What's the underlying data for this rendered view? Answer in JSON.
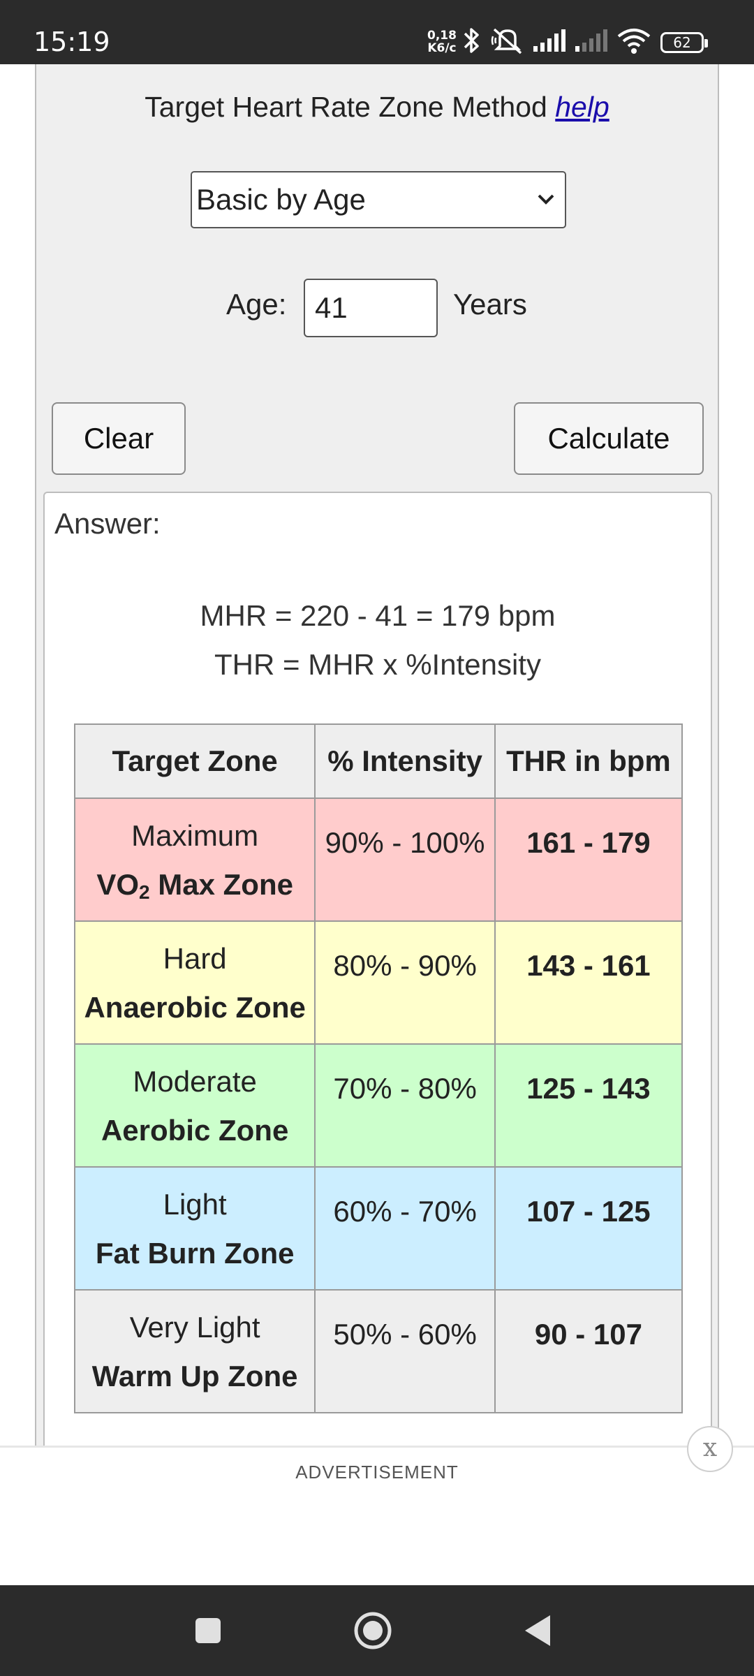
{
  "status_bar": {
    "time": "15:19",
    "net_speed_value": "0,18",
    "net_speed_unit": "K6/c",
    "battery": "62",
    "icons": [
      "bluetooth-icon",
      "mute-icon",
      "signal-icon",
      "signal-weak-icon",
      "wifi-icon",
      "battery-icon"
    ]
  },
  "calculator": {
    "method_label": "Target Heart Rate Zone Method",
    "help_link": "help",
    "method_selected": "Basic by Age",
    "age_label": "Age:",
    "age_value": "41",
    "age_unit": "Years",
    "clear_label": "Clear",
    "calculate_label": "Calculate"
  },
  "answer": {
    "label": "Answer:",
    "formula_mhr": "MHR = 220 - 41 = 179 bpm",
    "formula_thr": "THR = MHR x %Intensity",
    "table": {
      "headers": [
        "Target Zone",
        "% Intensity",
        "THR in bpm"
      ],
      "rows": [
        {
          "level": "Maximum",
          "zone_pre": "VO",
          "zone_sub": "2",
          "zone_post": " Max Zone",
          "intensity": "90% - 100%",
          "bpm": "161 - 179",
          "color": "#ffcccc"
        },
        {
          "level": "Hard",
          "zone_pre": "Anaerobic Zone",
          "zone_sub": "",
          "zone_post": "",
          "intensity": "80% - 90%",
          "bpm": "143 - 161",
          "color": "#ffffcc"
        },
        {
          "level": "Moderate",
          "zone_pre": "Aerobic Zone",
          "zone_sub": "",
          "zone_post": "",
          "intensity": "70% - 80%",
          "bpm": "125 - 143",
          "color": "#ccffcc"
        },
        {
          "level": "Light",
          "zone_pre": "Fat Burn Zone",
          "zone_sub": "",
          "zone_post": "",
          "intensity": "60% - 70%",
          "bpm": "107 - 125",
          "color": "#cceeff"
        },
        {
          "level": "Very Light",
          "zone_pre": "Warm Up Zone",
          "zone_sub": "",
          "zone_post": "",
          "intensity": "50% - 60%",
          "bpm": "90 - 107",
          "color": "#eeeeee"
        }
      ]
    }
  },
  "ad": {
    "label": "ADVERTISEMENT",
    "close_label": "x"
  },
  "nav_bar": {
    "buttons": [
      "recents-button",
      "home-button",
      "back-button"
    ]
  }
}
